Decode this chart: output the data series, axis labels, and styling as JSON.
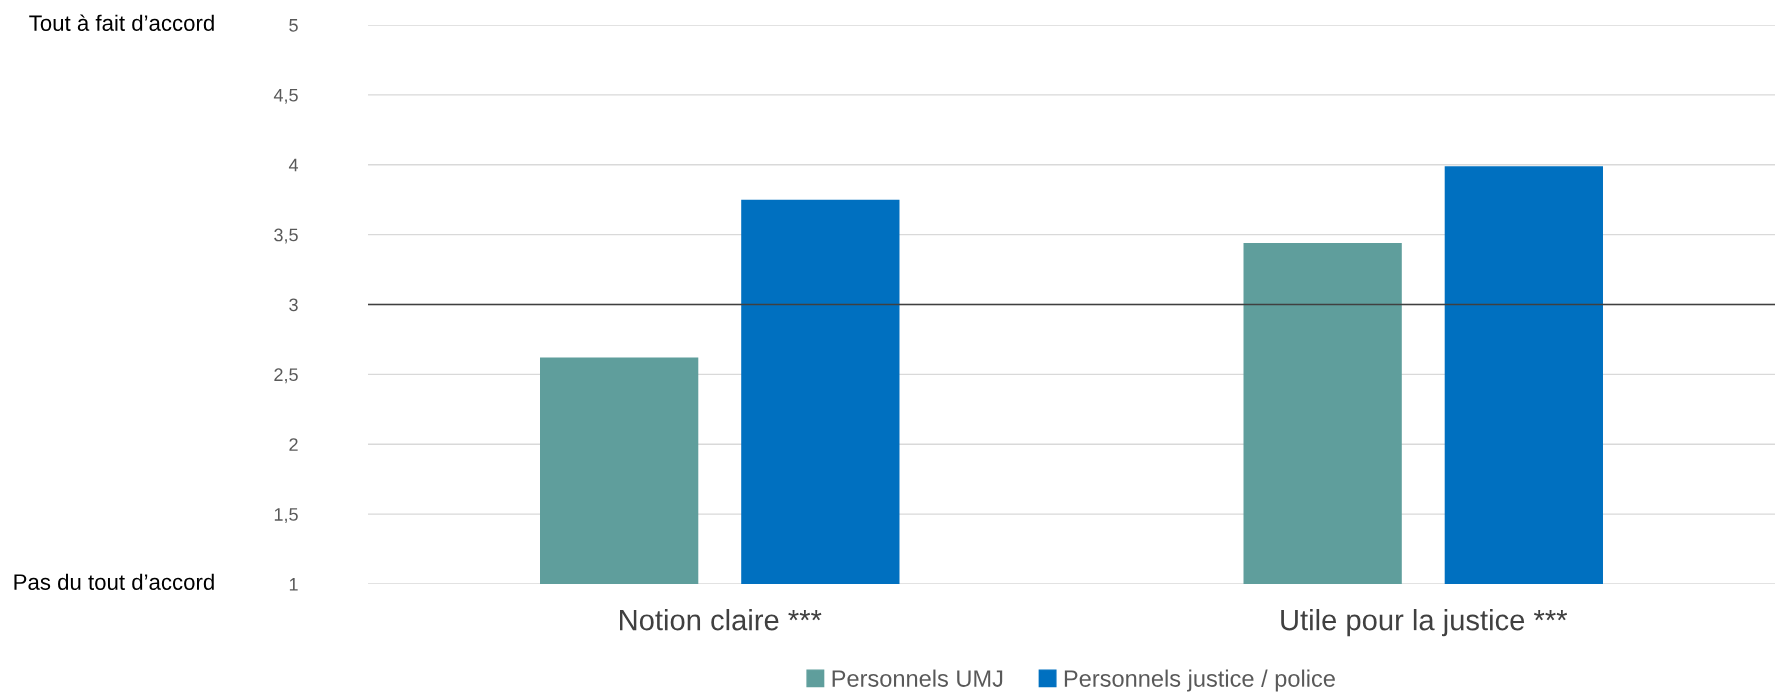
{
  "chart_data": {
    "type": "bar",
    "categories": [
      "Notion claire ***",
      "Utile pour la justice ***"
    ],
    "series": [
      {
        "name": "Personnels UMJ",
        "color": "#5f9e9c",
        "values": [
          2.62,
          3.44
        ]
      },
      {
        "name": "Personnels justice / police",
        "color": "#0070c0",
        "values": [
          3.75,
          3.99
        ]
      }
    ],
    "ylim": [
      1,
      5
    ],
    "yticks": [
      1,
      {
        "value": 1.5,
        "label": "1,5"
      },
      2,
      {
        "value": 2.5,
        "label": "2,5"
      },
      3,
      {
        "value": 3.5,
        "label": "3,5"
      },
      4,
      {
        "value": 4.5,
        "label": "4,5"
      },
      5
    ],
    "grid": "y",
    "legend": "bottom",
    "ref_lines": [
      {
        "axis": "y",
        "value": 3,
        "color": "#404040"
      }
    ],
    "annotations": [
      "Tout à fait d’accord",
      "Pas du tout d’accord"
    ]
  }
}
